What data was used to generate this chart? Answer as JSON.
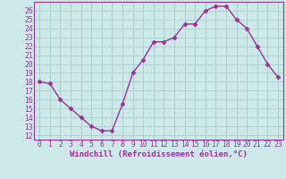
{
  "hours": [
    0,
    1,
    2,
    3,
    4,
    5,
    6,
    7,
    8,
    9,
    10,
    11,
    12,
    13,
    14,
    15,
    16,
    17,
    18,
    19,
    20,
    21,
    22,
    23
  ],
  "values": [
    18,
    17.8,
    16,
    15,
    14,
    13,
    12.5,
    12.5,
    15.5,
    19,
    20.5,
    22.5,
    22.5,
    23,
    24.5,
    24.5,
    26,
    26.5,
    26.5,
    25,
    24,
    22,
    20,
    18.5
  ],
  "line_color": "#993399",
  "marker": "D",
  "markersize": 2.5,
  "linewidth": 1.0,
  "bg_color": "#cce8e8",
  "grid_color": "#aacccc",
  "xlabel": "Windchill (Refroidissement éolien,°C)",
  "xlabel_fontsize": 6.5,
  "tick_fontsize": 5.8,
  "ylim": [
    11.5,
    27
  ],
  "xlim": [
    -0.5,
    23.5
  ],
  "yticks": [
    12,
    13,
    14,
    15,
    16,
    17,
    18,
    19,
    20,
    21,
    22,
    23,
    24,
    25,
    26
  ],
  "xticks": [
    0,
    1,
    2,
    3,
    4,
    5,
    6,
    7,
    8,
    9,
    10,
    11,
    12,
    13,
    14,
    15,
    16,
    17,
    18,
    19,
    20,
    21,
    22,
    23
  ]
}
